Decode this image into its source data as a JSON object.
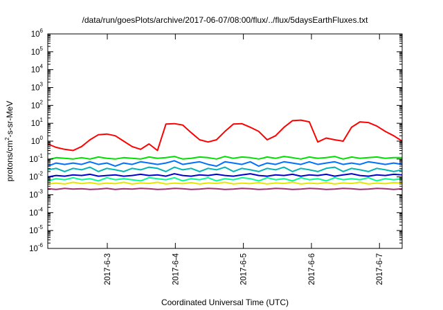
{
  "chart_data": {
    "type": "line",
    "title": "/data/run/goesPlots/archive/2017-06-07/08:00/flux/../flux/5daysEarthFluxes.txt",
    "xlabel": "Coordinated Universal Time (UTC)",
    "ylabel": {
      "prefix": "protons/cm",
      "sup": "2",
      "suffix": "-s-sr-MeV"
    },
    "yscale": "log",
    "ylim": [
      1e-06,
      1000000.0
    ],
    "y_ticks": [
      {
        "base": "10",
        "exp": "6"
      },
      {
        "base": "10",
        "exp": "5"
      },
      {
        "base": "10",
        "exp": "4"
      },
      {
        "base": "10",
        "exp": "3"
      },
      {
        "base": "10",
        "exp": "2"
      },
      {
        "base": "10",
        "exp": "1"
      },
      {
        "base": "10",
        "exp": "0"
      },
      {
        "base": "10",
        "exp": "-1"
      },
      {
        "base": "10",
        "exp": "-2"
      },
      {
        "base": "10",
        "exp": "-3"
      },
      {
        "base": "10",
        "exp": "-4"
      },
      {
        "base": "10",
        "exp": "-5"
      },
      {
        "base": "10",
        "exp": "-6"
      }
    ],
    "xlim": [
      "2017-06-02 03:00",
      "2017-06-07 08:00"
    ],
    "x_ticks": [
      "2017-6-3",
      "2017-6-4",
      "2017-6-5",
      "2017-6-6",
      "2017-6-7"
    ],
    "grid": false,
    "series": [
      {
        "color": "#ff0000",
        "y": [
          0.7,
          0.45,
          0.35,
          0.3,
          0.5,
          1.2,
          2.3,
          2.5,
          2.0,
          1.0,
          0.5,
          0.35,
          0.7,
          0.3,
          9.0,
          9.5,
          8.0,
          3.0,
          1.2,
          0.9,
          1.2,
          3.5,
          9.0,
          9.5,
          6.0,
          3.5,
          1.2,
          2.0,
          6.0,
          14.0,
          15.0,
          12.0,
          0.9,
          1.5,
          1.2,
          1.0,
          6.0,
          12.0,
          11.0,
          7.0,
          3.5,
          2.0,
          1.0
        ]
      },
      {
        "color": "#00e000",
        "y": [
          0.09,
          0.12,
          0.11,
          0.1,
          0.12,
          0.1,
          0.13,
          0.11,
          0.1,
          0.12,
          0.11,
          0.1,
          0.13,
          0.11,
          0.12,
          0.14,
          0.1,
          0.11,
          0.13,
          0.12,
          0.1,
          0.14,
          0.11,
          0.13,
          0.12,
          0.1,
          0.13,
          0.11,
          0.14,
          0.12,
          0.1,
          0.13,
          0.11,
          0.12,
          0.14,
          0.1,
          0.13,
          0.11,
          0.12,
          0.13,
          0.11,
          0.12,
          0.12
        ]
      },
      {
        "color": "#0070ff",
        "y": [
          0.04,
          0.06,
          0.05,
          0.06,
          0.05,
          0.07,
          0.05,
          0.06,
          0.04,
          0.06,
          0.05,
          0.07,
          0.06,
          0.05,
          0.06,
          0.08,
          0.05,
          0.06,
          0.07,
          0.05,
          0.04,
          0.07,
          0.06,
          0.05,
          0.07,
          0.04,
          0.06,
          0.05,
          0.07,
          0.06,
          0.05,
          0.07,
          0.05,
          0.06,
          0.07,
          0.05,
          0.06,
          0.05,
          0.07,
          0.06,
          0.05,
          0.06,
          0.05
        ]
      },
      {
        "color": "#00b4b4",
        "y": [
          0.025,
          0.03,
          0.02,
          0.03,
          0.025,
          0.035,
          0.02,
          0.03,
          0.025,
          0.02,
          0.03,
          0.025,
          0.035,
          0.03,
          0.02,
          0.035,
          0.025,
          0.03,
          0.02,
          0.03,
          0.025,
          0.035,
          0.02,
          0.03,
          0.025,
          0.02,
          0.03,
          0.025,
          0.035,
          0.02,
          0.03,
          0.025,
          0.02,
          0.03,
          0.035,
          0.02,
          0.03,
          0.025,
          0.02,
          0.03,
          0.025,
          0.02,
          0.025
        ]
      },
      {
        "color": "#0000d0",
        "y": [
          0.01,
          0.012,
          0.011,
          0.013,
          0.012,
          0.014,
          0.011,
          0.012,
          0.013,
          0.011,
          0.012,
          0.014,
          0.012,
          0.013,
          0.011,
          0.015,
          0.012,
          0.011,
          0.013,
          0.012,
          0.014,
          0.012,
          0.011,
          0.013,
          0.015,
          0.012,
          0.011,
          0.013,
          0.012,
          0.014,
          0.011,
          0.013,
          0.012,
          0.014,
          0.011,
          0.013,
          0.015,
          0.012,
          0.011,
          0.013,
          0.012,
          0.014,
          0.013
        ]
      },
      {
        "color": "#00ff90",
        "y": [
          0.006,
          0.008,
          0.007,
          0.009,
          0.007,
          0.008,
          0.006,
          0.009,
          0.007,
          0.008,
          0.007,
          0.006,
          0.009,
          0.008,
          0.007,
          0.009,
          0.006,
          0.008,
          0.007,
          0.009,
          0.006,
          0.008,
          0.007,
          0.009,
          0.008,
          0.006,
          0.009,
          0.007,
          0.008,
          0.006,
          0.009,
          0.007,
          0.008,
          0.006,
          0.009,
          0.007,
          0.008,
          0.007,
          0.009,
          0.006,
          0.008,
          0.007,
          0.008
        ]
      },
      {
        "color": "#e6e600",
        "y": [
          0.004,
          0.0045,
          0.004,
          0.005,
          0.0042,
          0.0048,
          0.004,
          0.0045,
          0.0042,
          0.005,
          0.004,
          0.0046,
          0.0043,
          0.005,
          0.004,
          0.0045,
          0.0042,
          0.0048,
          0.004,
          0.0046,
          0.0043,
          0.005,
          0.004,
          0.0045,
          0.0042,
          0.0048,
          0.004,
          0.0046,
          0.0043,
          0.005,
          0.004,
          0.0045,
          0.0042,
          0.0048,
          0.004,
          0.0046,
          0.0043,
          0.005,
          0.004,
          0.0045,
          0.0042,
          0.0048,
          0.0045
        ]
      },
      {
        "color": "#a0306e",
        "y": [
          0.0022,
          0.002,
          0.0023,
          0.0021,
          0.0022,
          0.002,
          0.0021,
          0.0023,
          0.002,
          0.0022,
          0.0021,
          0.0023,
          0.0022,
          0.002,
          0.0021,
          0.0023,
          0.0022,
          0.002,
          0.0021,
          0.0023,
          0.0022,
          0.002,
          0.0021,
          0.0023,
          0.0022,
          0.002,
          0.0021,
          0.0023,
          0.0022,
          0.002,
          0.0021,
          0.0023,
          0.0022,
          0.002,
          0.0021,
          0.0023,
          0.0022,
          0.002,
          0.0021,
          0.0023,
          0.0022,
          0.002,
          0.0022
        ]
      }
    ]
  }
}
